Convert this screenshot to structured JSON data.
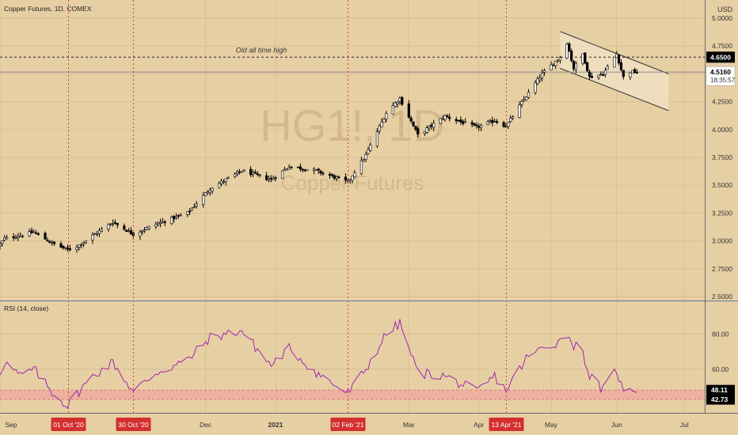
{
  "header": {
    "symbol_title": "Copper Futures, 1D, COMEX"
  },
  "watermark": {
    "symbol": "HG1!, 1D",
    "name": "Copper Futures"
  },
  "price_axis": {
    "currency": "USD"
  },
  "colors": {
    "background": "#e7cfa4",
    "up_candle": "#ffffff",
    "down_candle": "#000000",
    "rsi_line": "#9c27b0",
    "rsi_band": "#ef9a9a",
    "dotted_marker": "#e53935",
    "label_red": "#d32f2f"
  },
  "chart_data": [
    {
      "type": "candlestick",
      "title": "Copper Futures, 1D, COMEX",
      "ylim": [
        2.5,
        5.0
      ],
      "y_ticks": [
        "5.0000",
        "4.7500",
        "4.5000",
        "4.2500",
        "4.0000",
        "3.7500",
        "3.5000",
        "3.2500",
        "3.0000",
        "2.7500",
        "2.5000"
      ],
      "y_tick_values": [
        5.0,
        4.75,
        4.5,
        4.25,
        4.0,
        3.75,
        3.5,
        3.25,
        3.0,
        2.75,
        2.5
      ],
      "x_range": [
        "2020-09-01",
        "2021-07-10"
      ],
      "x_ticks": [
        {
          "label": "Sep",
          "date": "2020-09-01"
        },
        {
          "label": "Dec",
          "date": "2020-12-01"
        },
        {
          "label": "2021",
          "date": "2021-01-01"
        },
        {
          "label": "Mar",
          "date": "2021-03-01"
        },
        {
          "label": "Apr",
          "date": "2021-04-01"
        },
        {
          "label": "May",
          "date": "2021-05-03"
        },
        {
          "label": "Jun",
          "date": "2021-06-01"
        },
        {
          "label": "Jul",
          "date": "2021-07-01"
        }
      ],
      "anchors": [
        {
          "date": "2020-09-01",
          "close": 2.97
        },
        {
          "date": "2020-09-03",
          "close": 3.02
        },
        {
          "date": "2020-09-10",
          "close": 3.05
        },
        {
          "date": "2020-09-16",
          "close": 3.08
        },
        {
          "date": "2020-09-24",
          "close": 2.98
        },
        {
          "date": "2020-10-01",
          "close": 2.92
        },
        {
          "date": "2020-10-05",
          "close": 2.95
        },
        {
          "date": "2020-10-13",
          "close": 3.06
        },
        {
          "date": "2020-10-21",
          "close": 3.17
        },
        {
          "date": "2020-10-30",
          "close": 3.06
        },
        {
          "date": "2020-11-09",
          "close": 3.15
        },
        {
          "date": "2020-11-23",
          "close": 3.25
        },
        {
          "date": "2020-12-03",
          "close": 3.47
        },
        {
          "date": "2020-12-17",
          "close": 3.63
        },
        {
          "date": "2020-12-30",
          "close": 3.55
        },
        {
          "date": "2021-01-07",
          "close": 3.67
        },
        {
          "date": "2021-01-19",
          "close": 3.63
        },
        {
          "date": "2021-02-02",
          "close": 3.53
        },
        {
          "date": "2021-02-10",
          "close": 3.77
        },
        {
          "date": "2021-02-19",
          "close": 4.15
        },
        {
          "date": "2021-02-25",
          "close": 4.28
        },
        {
          "date": "2021-03-05",
          "close": 3.95
        },
        {
          "date": "2021-03-17",
          "close": 4.12
        },
        {
          "date": "2021-03-31",
          "close": 4.02
        },
        {
          "date": "2021-04-08",
          "close": 4.08
        },
        {
          "date": "2021-04-13",
          "close": 4.03
        },
        {
          "date": "2021-04-22",
          "close": 4.3
        },
        {
          "date": "2021-04-29",
          "close": 4.5
        },
        {
          "date": "2021-05-07",
          "close": 4.65
        },
        {
          "date": "2021-05-10",
          "close": 4.78
        },
        {
          "date": "2021-05-13",
          "close": 4.55
        },
        {
          "date": "2021-05-17",
          "close": 4.68
        },
        {
          "date": "2021-05-20",
          "close": 4.47
        },
        {
          "date": "2021-05-26",
          "close": 4.5
        },
        {
          "date": "2021-06-01",
          "close": 4.68
        },
        {
          "date": "2021-06-04",
          "close": 4.47
        },
        {
          "date": "2021-06-07",
          "close": 4.52
        },
        {
          "date": "2021-06-10",
          "close": 4.516
        }
      ],
      "horizontal_lines": [
        {
          "label": "Old all time high",
          "value": 4.65,
          "value_label": "4.6500",
          "style": "dashed"
        },
        {
          "value": 4.516,
          "value_label": "4.5160",
          "style": "solid"
        }
      ],
      "last_price": {
        "value": "4.5160",
        "countdown": "18:35:57"
      },
      "channel": {
        "upper": [
          {
            "date": "2021-05-07",
            "value": 4.88
          },
          {
            "date": "2021-06-24",
            "value": 4.5
          }
        ],
        "lower": [
          {
            "date": "2021-05-07",
            "value": 4.55
          },
          {
            "date": "2021-06-24",
            "value": 4.17
          }
        ]
      },
      "vertical_markers": [
        {
          "date": "2020-10-01",
          "label": "01 Oct '20"
        },
        {
          "date": "2020-10-30",
          "label": "30 Oct '20"
        },
        {
          "date": "2021-02-02",
          "label": "02 Feb '21"
        },
        {
          "date": "2021-04-13",
          "label": "13 Apr '21"
        }
      ]
    },
    {
      "type": "line",
      "title": "RSI (14, close)",
      "ylim": [
        36,
        91
      ],
      "y_ticks": [
        "80.00",
        "60.00"
      ],
      "y_tick_values": [
        80,
        60
      ],
      "band": {
        "upper": 48.11,
        "lower": 42.73,
        "upper_label": "48.11",
        "lower_label": "42.73"
      },
      "anchors": [
        {
          "date": "2020-09-01",
          "value": 58
        },
        {
          "date": "2020-09-03",
          "value": 64
        },
        {
          "date": "2020-09-10",
          "value": 56
        },
        {
          "date": "2020-09-16",
          "value": 60
        },
        {
          "date": "2020-09-24",
          "value": 47
        },
        {
          "date": "2020-10-01",
          "value": 39
        },
        {
          "date": "2020-10-05",
          "value": 46
        },
        {
          "date": "2020-10-13",
          "value": 57
        },
        {
          "date": "2020-10-21",
          "value": 64
        },
        {
          "date": "2020-10-30",
          "value": 47
        },
        {
          "date": "2020-11-09",
          "value": 58
        },
        {
          "date": "2020-11-23",
          "value": 65
        },
        {
          "date": "2020-12-03",
          "value": 78
        },
        {
          "date": "2020-12-17",
          "value": 82
        },
        {
          "date": "2020-12-30",
          "value": 62
        },
        {
          "date": "2021-01-07",
          "value": 72
        },
        {
          "date": "2021-01-19",
          "value": 58
        },
        {
          "date": "2021-02-02",
          "value": 46
        },
        {
          "date": "2021-02-10",
          "value": 60
        },
        {
          "date": "2021-02-19",
          "value": 80
        },
        {
          "date": "2021-02-25",
          "value": 86
        },
        {
          "date": "2021-03-05",
          "value": 58
        },
        {
          "date": "2021-03-17",
          "value": 56
        },
        {
          "date": "2021-03-31",
          "value": 47
        },
        {
          "date": "2021-04-08",
          "value": 56
        },
        {
          "date": "2021-04-13",
          "value": 48
        },
        {
          "date": "2021-04-22",
          "value": 66
        },
        {
          "date": "2021-04-29",
          "value": 72
        },
        {
          "date": "2021-05-07",
          "value": 76
        },
        {
          "date": "2021-05-10",
          "value": 80
        },
        {
          "date": "2021-05-13",
          "value": 74
        },
        {
          "date": "2021-05-17",
          "value": 70
        },
        {
          "date": "2021-05-20",
          "value": 56
        },
        {
          "date": "2021-05-26",
          "value": 48
        },
        {
          "date": "2021-06-01",
          "value": 60
        },
        {
          "date": "2021-06-04",
          "value": 46
        },
        {
          "date": "2021-06-07",
          "value": 50
        },
        {
          "date": "2021-06-10",
          "value": 48
        }
      ]
    }
  ]
}
